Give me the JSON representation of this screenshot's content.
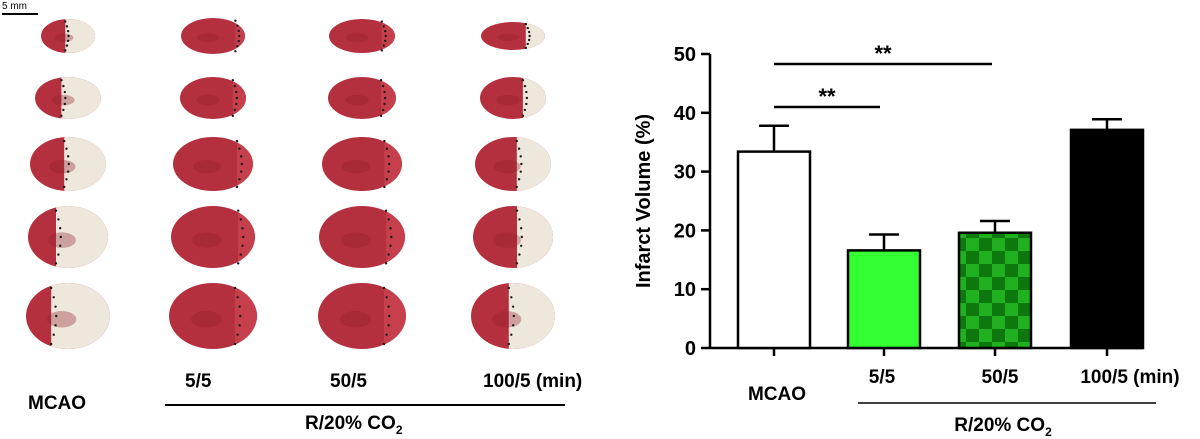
{
  "photo_panel": {
    "scale_label": "5 mm",
    "group_labels": [
      "MCAO",
      "5/5",
      "50/5",
      "100/5 (min)"
    ],
    "treatment_label": "R/20% CO",
    "treatment_subscript": "2",
    "colors": {
      "tissue_red": "#b5303e",
      "tissue_dark": "#8f1f2c",
      "infarct_white": "#eee7dc",
      "border_dots": "#1a1a1a"
    }
  },
  "chart_data": {
    "type": "bar",
    "categories": [
      "MCAO",
      "5/5",
      "50/5",
      "100/5 (min)"
    ],
    "values": [
      33.4,
      16.6,
      19.6,
      37.1
    ],
    "errors": [
      4.4,
      2.7,
      2.0,
      1.8
    ],
    "bar_colors": [
      "#ffffff",
      "#33ff33",
      "#119a11",
      "#000000"
    ],
    "bar_patterns": [
      "none",
      "none",
      "checker",
      "none"
    ],
    "ylabel": "Infarct Volume (%)",
    "ylim": [
      0,
      50
    ],
    "yticks": [
      0,
      10,
      20,
      30,
      40,
      50
    ],
    "grid": false,
    "significance": [
      {
        "from": "MCAO",
        "to": "5/5",
        "label": "**"
      },
      {
        "from": "MCAO",
        "to": "50/5",
        "label": "**"
      }
    ],
    "group_label": "R/20% CO",
    "group_label_subscript": "2"
  }
}
